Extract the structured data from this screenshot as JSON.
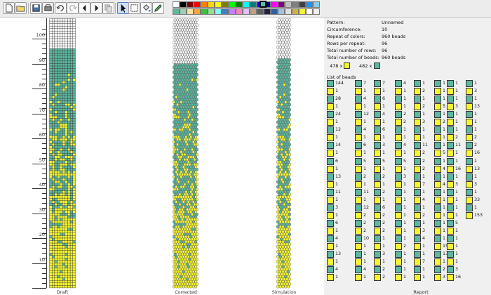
{
  "colors": {
    "yellow": "#f5f530",
    "teal": "#5cb8a0",
    "white": "#ffffff",
    "grid": "#333333"
  },
  "toolbar": {
    "buttons": [
      {
        "name": "new-file-button",
        "icon": "new-file-icon"
      },
      {
        "name": "open-file-button",
        "icon": "folder-open-icon"
      },
      {
        "name": "save-button",
        "icon": "save-icon"
      },
      {
        "name": "print-button",
        "icon": "print-icon"
      },
      {
        "name": "undo-button",
        "icon": "undo-icon"
      },
      {
        "name": "redo-button",
        "icon": "redo-icon"
      },
      {
        "name": "shift-left-button",
        "icon": "arrow-left-icon"
      },
      {
        "name": "shift-right-button",
        "icon": "arrow-right-icon"
      },
      {
        "name": "copy-button",
        "icon": "copy-icon"
      },
      {
        "name": "pointer-tool-button",
        "icon": "pointer-icon"
      },
      {
        "name": "select-tool-button",
        "icon": "select-rect-icon"
      },
      {
        "name": "fill-tool-button",
        "icon": "paint-bucket-icon"
      },
      {
        "name": "color-picker-button",
        "icon": "pipette-icon"
      }
    ],
    "palette_row1": [
      "#ffffff",
      "#000000",
      "#7f0000",
      "#ff0000",
      "#ff7f00",
      "#ffd800",
      "#ffff00",
      "#7f7f00",
      "#00ff00",
      "#007f00",
      "#00ffff",
      "#007f7f",
      "#0000ff",
      "#00007f",
      "#ff00ff",
      "#7f007f",
      "#c0c0c0",
      "#808080",
      "#404040",
      "#1e90ff",
      "#87ceeb"
    ],
    "palette_row2": [
      "#5cb8a0",
      "#a0d0b0",
      "#ffe0a0",
      "#ffa040",
      "#40c040",
      "#90e090",
      "#80ffff",
      "#4080c0",
      "#c080ff",
      "#ff80c0",
      "#e0c0ff",
      "#c0a080",
      "#606060",
      "#202040",
      "#3060a0",
      "#a0c0e0",
      "#e0e0e0",
      "#d0b040",
      "#f5f530",
      "#ffffff",
      "#f0f0f0"
    ]
  },
  "ruler": {
    "labels": [
      "100",
      "90",
      "80",
      "70",
      "60",
      "50",
      "40",
      "30",
      "20",
      "10"
    ]
  },
  "columns": {
    "draft": "Draft",
    "corrected": "Corrected",
    "simulation": "Simulation",
    "report": "Report"
  },
  "info": {
    "pattern_label": "Pattern:",
    "pattern_value": "Unnamed",
    "circumference_label": "Circumference:",
    "circumference_value": "10",
    "repeat_colors_label": "Repeat of colors:",
    "repeat_colors_value": "960 beads",
    "rows_repeat_label": "Rows per repeat:",
    "rows_repeat_value": "96",
    "total_rows_label": "Total number of rows:",
    "total_rows_value": "96",
    "total_beads_label": "Total number of beads:",
    "total_beads_value": "960 beads",
    "count_yellow": "478 x",
    "count_teal": "482 x",
    "list_title": "List of beads"
  },
  "bead_list": [
    [
      {
        "c": "teal",
        "n": "144"
      },
      {
        "c": "yellow",
        "n": "1"
      },
      {
        "c": "teal",
        "n": "28"
      },
      {
        "c": "yellow",
        "n": "1"
      },
      {
        "c": "teal",
        "n": "24"
      },
      {
        "c": "yellow",
        "n": "1"
      },
      {
        "c": "teal",
        "n": "12"
      },
      {
        "c": "yellow",
        "n": "1"
      },
      {
        "c": "teal",
        "n": "14"
      },
      {
        "c": "yellow",
        "n": "1"
      },
      {
        "c": "teal",
        "n": "6"
      },
      {
        "c": "yellow",
        "n": "1"
      },
      {
        "c": "teal",
        "n": "13"
      },
      {
        "c": "yellow",
        "n": "1"
      },
      {
        "c": "teal",
        "n": "11"
      },
      {
        "c": "yellow",
        "n": "1"
      },
      {
        "c": "teal",
        "n": "3"
      },
      {
        "c": "yellow",
        "n": "1"
      },
      {
        "c": "teal",
        "n": "6"
      },
      {
        "c": "yellow",
        "n": "1"
      },
      {
        "c": "teal",
        "n": "4"
      },
      {
        "c": "yellow",
        "n": "1"
      },
      {
        "c": "teal",
        "n": "13"
      },
      {
        "c": "yellow",
        "n": "1"
      },
      {
        "c": "teal",
        "n": "4"
      },
      {
        "c": "yellow",
        "n": "1"
      }
    ],
    [
      {
        "c": "teal",
        "n": "7"
      },
      {
        "c": "yellow",
        "n": "1"
      },
      {
        "c": "teal",
        "n": "4"
      },
      {
        "c": "yellow",
        "n": "1"
      },
      {
        "c": "teal",
        "n": "12"
      },
      {
        "c": "yellow",
        "n": "1"
      },
      {
        "c": "teal",
        "n": "4"
      },
      {
        "c": "yellow",
        "n": "1"
      },
      {
        "c": "teal",
        "n": "6"
      },
      {
        "c": "yellow",
        "n": "1"
      },
      {
        "c": "teal",
        "n": "5"
      },
      {
        "c": "yellow",
        "n": "1"
      },
      {
        "c": "teal",
        "n": "2"
      },
      {
        "c": "yellow",
        "n": "1"
      },
      {
        "c": "teal",
        "n": "11"
      },
      {
        "c": "yellow",
        "n": "1"
      },
      {
        "c": "teal",
        "n": "12"
      },
      {
        "c": "yellow",
        "n": "2"
      },
      {
        "c": "teal",
        "n": "2"
      },
      {
        "c": "yellow",
        "n": "2"
      },
      {
        "c": "teal",
        "n": "10"
      },
      {
        "c": "yellow",
        "n": "1"
      },
      {
        "c": "teal",
        "n": "1"
      },
      {
        "c": "yellow",
        "n": "1"
      },
      {
        "c": "teal",
        "n": "4"
      },
      {
        "c": "yellow",
        "n": "1"
      }
    ],
    [
      {
        "c": "teal",
        "n": "7"
      },
      {
        "c": "yellow",
        "n": "1"
      },
      {
        "c": "teal",
        "n": "6"
      },
      {
        "c": "yellow",
        "n": "1"
      },
      {
        "c": "teal",
        "n": "4"
      },
      {
        "c": "yellow",
        "n": "1"
      },
      {
        "c": "teal",
        "n": "6"
      },
      {
        "c": "yellow",
        "n": "1"
      },
      {
        "c": "teal",
        "n": "3"
      },
      {
        "c": "yellow",
        "n": "1"
      },
      {
        "c": "teal",
        "n": "5"
      },
      {
        "c": "yellow",
        "n": "1"
      },
      {
        "c": "teal",
        "n": "2"
      },
      {
        "c": "yellow",
        "n": "1"
      },
      {
        "c": "teal",
        "n": "2"
      },
      {
        "c": "yellow",
        "n": "1"
      },
      {
        "c": "teal",
        "n": "6"
      },
      {
        "c": "yellow",
        "n": "2"
      },
      {
        "c": "teal",
        "n": "2"
      },
      {
        "c": "yellow",
        "n": "2"
      },
      {
        "c": "teal",
        "n": "1"
      },
      {
        "c": "yellow",
        "n": "1"
      },
      {
        "c": "teal",
        "n": "3"
      },
      {
        "c": "yellow",
        "n": "1"
      },
      {
        "c": "teal",
        "n": "2"
      },
      {
        "c": "yellow",
        "n": "2"
      }
    ],
    [
      {
        "c": "teal",
        "n": "4"
      },
      {
        "c": "yellow",
        "n": "1"
      },
      {
        "c": "teal",
        "n": "1"
      },
      {
        "c": "yellow",
        "n": "1"
      },
      {
        "c": "teal",
        "n": "2"
      },
      {
        "c": "yellow",
        "n": "2"
      },
      {
        "c": "teal",
        "n": "1"
      },
      {
        "c": "yellow",
        "n": "1"
      },
      {
        "c": "teal",
        "n": "4"
      },
      {
        "c": "yellow",
        "n": "1"
      },
      {
        "c": "teal",
        "n": "5"
      },
      {
        "c": "yellow",
        "n": "1"
      },
      {
        "c": "teal",
        "n": "3"
      },
      {
        "c": "yellow",
        "n": "1"
      },
      {
        "c": "teal",
        "n": "1"
      },
      {
        "c": "yellow",
        "n": "1"
      },
      {
        "c": "teal",
        "n": "1"
      },
      {
        "c": "yellow",
        "n": "1"
      },
      {
        "c": "teal",
        "n": "1"
      },
      {
        "c": "yellow",
        "n": "1"
      },
      {
        "c": "teal",
        "n": "1"
      },
      {
        "c": "yellow",
        "n": "2"
      },
      {
        "c": "teal",
        "n": "1"
      },
      {
        "c": "yellow",
        "n": "1"
      },
      {
        "c": "teal",
        "n": "1"
      },
      {
        "c": "yellow",
        "n": "1"
      }
    ],
    [
      {
        "c": "teal",
        "n": "1"
      },
      {
        "c": "yellow",
        "n": "2"
      },
      {
        "c": "teal",
        "n": "1"
      },
      {
        "c": "yellow",
        "n": "2"
      },
      {
        "c": "teal",
        "n": "1"
      },
      {
        "c": "yellow",
        "n": "3"
      },
      {
        "c": "teal",
        "n": "1"
      },
      {
        "c": "yellow",
        "n": "1"
      },
      {
        "c": "teal",
        "n": "11"
      },
      {
        "c": "yellow",
        "n": "2"
      },
      {
        "c": "teal",
        "n": "2"
      },
      {
        "c": "yellow",
        "n": "2"
      },
      {
        "c": "teal",
        "n": "1"
      },
      {
        "c": "yellow",
        "n": "7"
      },
      {
        "c": "teal",
        "n": "1"
      },
      {
        "c": "yellow",
        "n": "4"
      },
      {
        "c": "teal",
        "n": "1"
      },
      {
        "c": "yellow",
        "n": "2"
      },
      {
        "c": "teal",
        "n": "1"
      },
      {
        "c": "yellow",
        "n": "3"
      },
      {
        "c": "teal",
        "n": "4"
      },
      {
        "c": "yellow",
        "n": "1"
      },
      {
        "c": "teal",
        "n": "1"
      },
      {
        "c": "yellow",
        "n": "7"
      },
      {
        "c": "teal",
        "n": "1"
      },
      {
        "c": "yellow",
        "n": "1"
      }
    ],
    [
      {
        "c": "teal",
        "n": "1"
      },
      {
        "c": "yellow",
        "n": "1"
      },
      {
        "c": "teal",
        "n": "1"
      },
      {
        "c": "yellow",
        "n": "5"
      },
      {
        "c": "teal",
        "n": "1"
      },
      {
        "c": "yellow",
        "n": "2"
      },
      {
        "c": "teal",
        "n": "1"
      },
      {
        "c": "yellow",
        "n": "1"
      },
      {
        "c": "teal",
        "n": "1"
      },
      {
        "c": "yellow",
        "n": "5"
      },
      {
        "c": "teal",
        "n": "1"
      },
      {
        "c": "yellow",
        "n": "4"
      },
      {
        "c": "teal",
        "n": "1"
      },
      {
        "c": "yellow",
        "n": "4"
      },
      {
        "c": "teal",
        "n": "1"
      },
      {
        "c": "yellow",
        "n": "1"
      },
      {
        "c": "teal",
        "n": "1"
      },
      {
        "c": "yellow",
        "n": "1"
      },
      {
        "c": "teal",
        "n": "1"
      },
      {
        "c": "yellow",
        "n": "1"
      },
      {
        "c": "teal",
        "n": "1"
      },
      {
        "c": "yellow",
        "n": "15"
      },
      {
        "c": "teal",
        "n": "13"
      },
      {
        "c": "yellow",
        "n": "1"
      },
      {
        "c": "teal",
        "n": "2"
      },
      {
        "c": "yellow",
        "n": "3"
      }
    ],
    [
      {
        "c": "teal",
        "n": "1"
      },
      {
        "c": "yellow",
        "n": "1"
      },
      {
        "c": "teal",
        "n": "1"
      },
      {
        "c": "yellow",
        "n": "3"
      },
      {
        "c": "teal",
        "n": "1"
      },
      {
        "c": "yellow",
        "n": "1"
      },
      {
        "c": "teal",
        "n": "1"
      },
      {
        "c": "yellow",
        "n": "2"
      },
      {
        "c": "teal",
        "n": "11"
      },
      {
        "c": "yellow",
        "n": "1"
      },
      {
        "c": "teal",
        "n": "1"
      },
      {
        "c": "yellow",
        "n": "16"
      },
      {
        "c": "teal",
        "n": "1"
      },
      {
        "c": "yellow",
        "n": "3"
      },
      {
        "c": "teal",
        "n": "1"
      },
      {
        "c": "yellow",
        "n": "1"
      },
      {
        "c": "teal",
        "n": "1"
      },
      {
        "c": "yellow",
        "n": "1"
      },
      {
        "c": "teal",
        "n": "5"
      },
      {
        "c": "yellow",
        "n": "1"
      },
      {
        "c": "teal",
        "n": "1"
      },
      {
        "c": "yellow",
        "n": "1"
      },
      {
        "c": "teal",
        "n": "1"
      },
      {
        "c": "yellow",
        "n": "1"
      },
      {
        "c": "teal",
        "n": "3"
      },
      {
        "c": "yellow",
        "n": "16"
      }
    ],
    [
      {
        "c": "teal",
        "n": "1"
      },
      {
        "c": "yellow",
        "n": "3"
      },
      {
        "c": "teal",
        "n": "1"
      },
      {
        "c": "yellow",
        "n": "13"
      },
      {
        "c": "teal",
        "n": "1"
      },
      {
        "c": "yellow",
        "n": "1"
      },
      {
        "c": "teal",
        "n": "1"
      },
      {
        "c": "yellow",
        "n": "2"
      },
      {
        "c": "teal",
        "n": "2"
      },
      {
        "c": "yellow",
        "n": "16"
      },
      {
        "c": "teal",
        "n": "1"
      },
      {
        "c": "yellow",
        "n": "13"
      },
      {
        "c": "teal",
        "n": "1"
      },
      {
        "c": "yellow",
        "n": "3"
      },
      {
        "c": "teal",
        "n": "1"
      },
      {
        "c": "yellow",
        "n": "33"
      },
      {
        "c": "teal",
        "n": "1"
      },
      {
        "c": "yellow",
        "n": "153"
      }
    ]
  ]
}
